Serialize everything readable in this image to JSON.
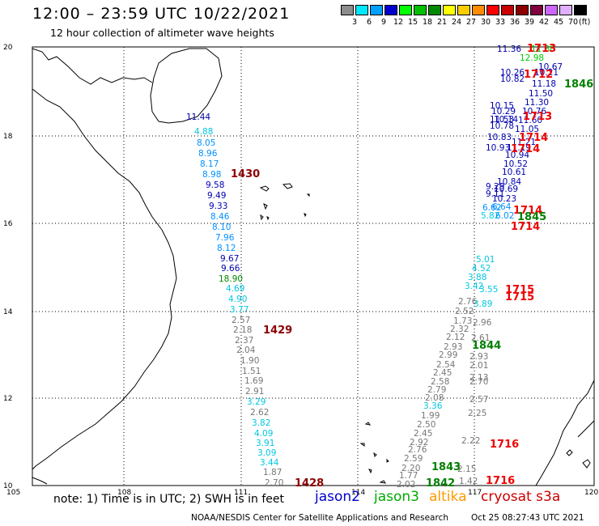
{
  "header": {
    "title": "12:00 – 23:59 UTC 10/22/2021",
    "subtitle": "12 hour collection of altimeter wave heights"
  },
  "colorbar": {
    "unit": "(ft)",
    "bins": [
      {
        "label": "3",
        "color": "#8c8c8c"
      },
      {
        "label": "6",
        "color": "#00e8ff"
      },
      {
        "label": "9",
        "color": "#00a0ff"
      },
      {
        "label": "12",
        "color": "#0000d0"
      },
      {
        "label": "15",
        "color": "#00ff00"
      },
      {
        "label": "18",
        "color": "#00c000"
      },
      {
        "label": "21",
        "color": "#008800"
      },
      {
        "label": "24",
        "color": "#ffff00"
      },
      {
        "label": "27",
        "color": "#ffcc00"
      },
      {
        "label": "30",
        "color": "#ff8c00"
      },
      {
        "label": "33",
        "color": "#ff0000"
      },
      {
        "label": "36",
        "color": "#c80000"
      },
      {
        "label": "39",
        "color": "#8c0000"
      },
      {
        "label": "42",
        "color": "#800040"
      },
      {
        "label": "45",
        "color": "#cc66ff"
      },
      {
        "label": "70",
        "color": "#e0b0ff"
      },
      {
        "label": "",
        "color": "#000000"
      }
    ]
  },
  "map": {
    "lon_labels": [
      "105",
      "108",
      "111",
      "114",
      "117",
      "120"
    ],
    "lat_labels": [
      "20",
      "18",
      "16",
      "14",
      "12",
      "10"
    ]
  },
  "tracks": [
    {
      "satellite": "cryosat s3a",
      "pass": "1430",
      "pass_color": "#8b0000",
      "points": [
        {
          "v": "11.44",
          "c": "#0000b0"
        },
        {
          "v": "4.88",
          "c": "#00c8e0"
        },
        {
          "v": "8.05",
          "c": "#0090ff"
        },
        {
          "v": "8.96",
          "c": "#0090ff"
        },
        {
          "v": "8.17",
          "c": "#0090ff"
        },
        {
          "v": "8.98",
          "c": "#0090ff"
        },
        {
          "v": "9.58",
          "c": "#0000b0"
        },
        {
          "v": "9.49",
          "c": "#0000b0"
        },
        {
          "v": "9.33",
          "c": "#0000b0"
        },
        {
          "v": "8.46",
          "c": "#0090ff"
        },
        {
          "v": "8.10",
          "c": "#0090ff"
        },
        {
          "v": "7.96",
          "c": "#0090ff"
        },
        {
          "v": "8.12",
          "c": "#0090ff"
        },
        {
          "v": "9.67",
          "c": "#0000b0"
        },
        {
          "v": "9.66",
          "c": "#0000b0"
        },
        {
          "v": "18.90",
          "c": "#008800"
        },
        {
          "v": "4.69",
          "c": "#00c8e0"
        },
        {
          "v": "4.90",
          "c": "#00c8e0"
        },
        {
          "v": "3.77",
          "c": "#00c8e0"
        }
      ]
    },
    {
      "satellite": "cryosat s3a",
      "pass": "1429",
      "pass_color": "#8b0000",
      "points": [
        {
          "v": "2.57",
          "c": "#777777"
        },
        {
          "v": "2.18",
          "c": "#777777"
        },
        {
          "v": "2.37",
          "c": "#777777"
        },
        {
          "v": "2.04",
          "c": "#777777"
        },
        {
          "v": "1.90",
          "c": "#777777"
        },
        {
          "v": "1.51",
          "c": "#777777"
        },
        {
          "v": "1.69",
          "c": "#777777"
        },
        {
          "v": "2.91",
          "c": "#777777"
        },
        {
          "v": "3.29",
          "c": "#00c8e0"
        },
        {
          "v": "2.62",
          "c": "#777777"
        },
        {
          "v": "3.82",
          "c": "#00c8e0"
        },
        {
          "v": "4.09",
          "c": "#00c8e0"
        },
        {
          "v": "3.91",
          "c": "#00c8e0"
        },
        {
          "v": "3.09",
          "c": "#00c8e0"
        },
        {
          "v": "3.44",
          "c": "#00c8e0"
        },
        {
          "v": "1.87",
          "c": "#777777"
        },
        {
          "v": "2.70",
          "c": "#777777"
        }
      ]
    },
    {
      "satellite": "cryosat s3a",
      "pass": "1428",
      "pass_color": "#8b0000",
      "points": []
    },
    {
      "satellite": "mixed",
      "pass": "1713",
      "pass_color": "#ee0000",
      "points": [
        {
          "v": "11.36",
          "c": "#0000b0"
        },
        {
          "v": "11.30",
          "c": "#00cc00"
        },
        {
          "v": "12.98",
          "c": "#00cc00"
        },
        {
          "v": "10.67",
          "c": "#0000b0"
        },
        {
          "v": "10.26",
          "c": "#0000b0"
        },
        {
          "v": "10.21",
          "c": "#0000b0"
        },
        {
          "v": "10.82",
          "c": "#0000b0"
        },
        {
          "v": "11.18",
          "c": "#0000b0"
        },
        {
          "v": "11.50",
          "c": "#0000b0"
        },
        {
          "v": "11.30",
          "c": "#0000b0"
        },
        {
          "v": "10.15",
          "c": "#0000b0"
        },
        {
          "v": "10.29",
          "c": "#0000b0"
        },
        {
          "v": "10.76",
          "c": "#0000b0"
        },
        {
          "v": "10.14",
          "c": "#0000b0"
        },
        {
          "v": "11.53",
          "c": "#0000b0"
        },
        {
          "v": "11.60",
          "c": "#0000b0"
        },
        {
          "v": "10.78",
          "c": "#0000b0"
        },
        {
          "v": "11.05",
          "c": "#0000b0"
        },
        {
          "v": "10.83",
          "c": "#0000b0"
        },
        {
          "v": "11.21",
          "c": "#0000b0"
        },
        {
          "v": "10.93",
          "c": "#0000b0"
        },
        {
          "v": "11.19",
          "c": "#0000b0"
        },
        {
          "v": "10.94",
          "c": "#0000b0"
        },
        {
          "v": "10.52",
          "c": "#0000b0"
        },
        {
          "v": "10.61",
          "c": "#0000b0"
        },
        {
          "v": "10.84",
          "c": "#0000b0"
        },
        {
          "v": "9.29",
          "c": "#0000b0"
        },
        {
          "v": "10.69",
          "c": "#0000b0"
        },
        {
          "v": "9.11",
          "c": "#0000b0"
        },
        {
          "v": "10.23",
          "c": "#0000b0"
        },
        {
          "v": "6.62",
          "c": "#0090ff"
        },
        {
          "v": "6.64",
          "c": "#0090ff"
        },
        {
          "v": "5.82",
          "c": "#00c8e0"
        },
        {
          "v": "6.02",
          "c": "#0090ff"
        }
      ]
    },
    {
      "satellite": "mixed",
      "pass": "1715",
      "pass_color": "#ee0000",
      "points": [
        {
          "v": "5.01",
          "c": "#00c8e0"
        },
        {
          "v": "4.52",
          "c": "#00c8e0"
        },
        {
          "v": "3.88",
          "c": "#00c8e0"
        },
        {
          "v": "3.42",
          "c": "#00c8e0"
        },
        {
          "v": "3.55",
          "c": "#00c8e0"
        },
        {
          "v": "2.76",
          "c": "#777777"
        },
        {
          "v": "3.89",
          "c": "#00c8e0"
        },
        {
          "v": "2.52",
          "c": "#777777"
        },
        {
          "v": "1.73",
          "c": "#777777"
        },
        {
          "v": "2.96",
          "c": "#777777"
        },
        {
          "v": "2.32",
          "c": "#777777"
        },
        {
          "v": "2.12",
          "c": "#777777"
        },
        {
          "v": "2.61",
          "c": "#777777"
        },
        {
          "v": "2.93",
          "c": "#777777"
        },
        {
          "v": "2.99",
          "c": "#777777"
        },
        {
          "v": "2.93",
          "c": "#777777"
        },
        {
          "v": "2.54",
          "c": "#777777"
        },
        {
          "v": "2.01",
          "c": "#777777"
        },
        {
          "v": "2.45",
          "c": "#777777"
        },
        {
          "v": "2.13",
          "c": "#777777"
        },
        {
          "v": "2.58",
          "c": "#777777"
        },
        {
          "v": "2.70",
          "c": "#777777"
        },
        {
          "v": "2.79",
          "c": "#777777"
        },
        {
          "v": "2.08",
          "c": "#777777"
        },
        {
          "v": "2.57",
          "c": "#777777"
        },
        {
          "v": "2.25",
          "c": "#777777"
        }
      ]
    },
    {
      "satellite": "mixed",
      "pass": "1716",
      "pass_color": "#ee0000",
      "points": [
        {
          "v": "3.36",
          "c": "#00c8e0"
        },
        {
          "v": "1.99",
          "c": "#777777"
        },
        {
          "v": "2.50",
          "c": "#777777"
        },
        {
          "v": "2.45",
          "c": "#777777"
        },
        {
          "v": "2.92",
          "c": "#777777"
        },
        {
          "v": "2.22",
          "c": "#777777"
        },
        {
          "v": "2.76",
          "c": "#777777"
        },
        {
          "v": "2.59",
          "c": "#777777"
        },
        {
          "v": "2.20",
          "c": "#777777"
        },
        {
          "v": "1.77",
          "c": "#777777"
        },
        {
          "v": "2.15",
          "c": "#777777"
        },
        {
          "v": "2.02",
          "c": "#777777"
        },
        {
          "v": "1.42",
          "c": "#777777"
        }
      ]
    }
  ],
  "pass_labels": {
    "p1713": "1713",
    "p1712": "1712",
    "p1846": "1846",
    "p1713b": "1713",
    "p1714": "1714",
    "p1714b": "1714",
    "p1714c": "1714",
    "p1845": "1845",
    "p1714d": "1714",
    "p1715": "1715",
    "p1715b": "1715",
    "p1844": "1844",
    "p1716": "1716",
    "p1843": "1843",
    "p1842": "1842",
    "p1716b": "1716",
    "p1430": "1430",
    "p1429": "1429",
    "p1428": "1428"
  },
  "footer": {
    "note": "note:  1) Time is in UTC;  2) SWH is in feet",
    "legend": [
      {
        "name": "jason2",
        "color": "#0000cc"
      },
      {
        "name": "jason3",
        "color": "#00aa00"
      },
      {
        "name": "altika",
        "color": "#ff9900"
      },
      {
        "name": "cryosat s3a",
        "color": "#cc0000"
      }
    ],
    "credit": "NOAA/NESDIS Center for Satellite Applications and Research",
    "timestamp": "Oct 25 08:27:43 UTC 2021"
  }
}
